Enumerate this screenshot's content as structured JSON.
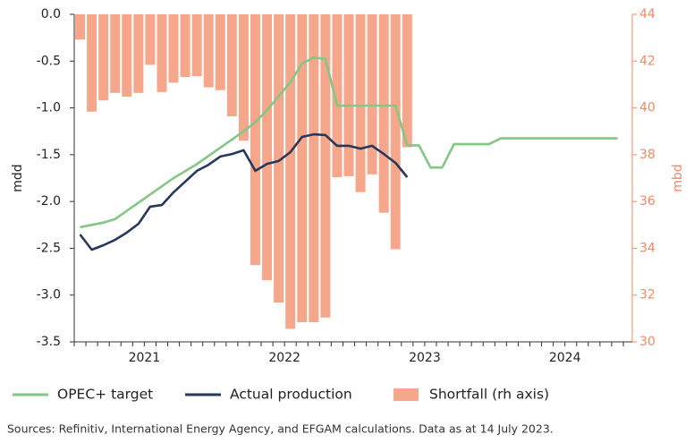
{
  "chart_data": {
    "type": "bar_line",
    "y_label": "mdd",
    "y2_label": "mbd",
    "source": "Sources: Refinitiv, International Energy Agency, and EFGAM calculations. Data as at 14 July 2023.",
    "categories": [
      null,
      null,
      null,
      null,
      null,
      "2021",
      null,
      null,
      null,
      null,
      null,
      null,
      null,
      null,
      null,
      null,
      null,
      "2022",
      null,
      null,
      null,
      null,
      null,
      null,
      null,
      null,
      null,
      null,
      null,
      "2023",
      null,
      null,
      null,
      null,
      null,
      null,
      null,
      null,
      null,
      null,
      null,
      "2024",
      null,
      null,
      null,
      null,
      null
    ],
    "ylim": [
      -3.5,
      0
    ],
    "yticks": [
      {
        "value": 0,
        "label": "0.0"
      },
      -0.5,
      {
        "value": -1,
        "label": "-1.0"
      },
      -1.5,
      {
        "value": -2,
        "label": "-2.0"
      },
      -2.5,
      {
        "value": -3,
        "label": "-3.0"
      },
      -3.5
    ],
    "y2lim": [
      30,
      44
    ],
    "y2ticks": [
      30,
      32,
      34,
      36,
      38,
      40,
      42,
      44
    ],
    "series": [
      {
        "name": "OPEC+ target",
        "type": "line",
        "axis": "y2",
        "color": "#84c685",
        "values": [
          34.9,
          35.0,
          35.1,
          35.25,
          35.6,
          35.95,
          36.3,
          36.65,
          37.0,
          37.3,
          37.6,
          37.95,
          38.3,
          38.65,
          39.0,
          39.4,
          39.9,
          40.5,
          41.1,
          41.9,
          42.15,
          42.1,
          40.1,
          40.1,
          40.1,
          40.1,
          40.1,
          40.1,
          38.4,
          38.4,
          37.45,
          37.45,
          38.45,
          38.45,
          38.45,
          38.45,
          38.7,
          38.7,
          38.7,
          38.7,
          38.7,
          38.7,
          38.7,
          38.7,
          38.7,
          38.7,
          38.7
        ]
      },
      {
        "name": "Actual production",
        "type": "line",
        "axis": "y2",
        "color": "#27385a",
        "values": [
          34.59,
          33.94,
          34.13,
          34.36,
          34.67,
          35.05,
          35.78,
          35.85,
          36.39,
          36.85,
          37.31,
          37.57,
          37.92,
          38.03,
          38.19,
          37.31,
          37.61,
          37.73,
          38.11,
          38.76,
          38.87,
          38.84,
          38.38,
          38.38,
          38.26,
          38.38,
          38.03,
          37.65,
          37.04,
          null,
          null,
          null,
          null,
          null,
          null,
          null,
          null,
          null,
          null,
          null,
          null,
          null,
          null,
          null,
          null,
          null,
          null
        ]
      },
      {
        "name": "Shortfall (rh axis)",
        "type": "bar",
        "axis": "y",
        "color": "#f6a68b",
        "values": [
          -0.27,
          -1.04,
          -0.92,
          -0.84,
          -0.88,
          -0.84,
          -0.54,
          -0.83,
          -0.73,
          -0.67,
          -0.66,
          -0.78,
          -0.81,
          -1.09,
          -1.35,
          -2.68,
          -2.84,
          -3.08,
          -3.36,
          -3.29,
          -3.29,
          -3.24,
          -1.74,
          -1.73,
          -1.9,
          -1.71,
          -2.12,
          -2.51,
          -1.42,
          null,
          null,
          null,
          null,
          null,
          null,
          null,
          null,
          null,
          null,
          null,
          null,
          null,
          null,
          null,
          null,
          null,
          null
        ]
      }
    ]
  }
}
